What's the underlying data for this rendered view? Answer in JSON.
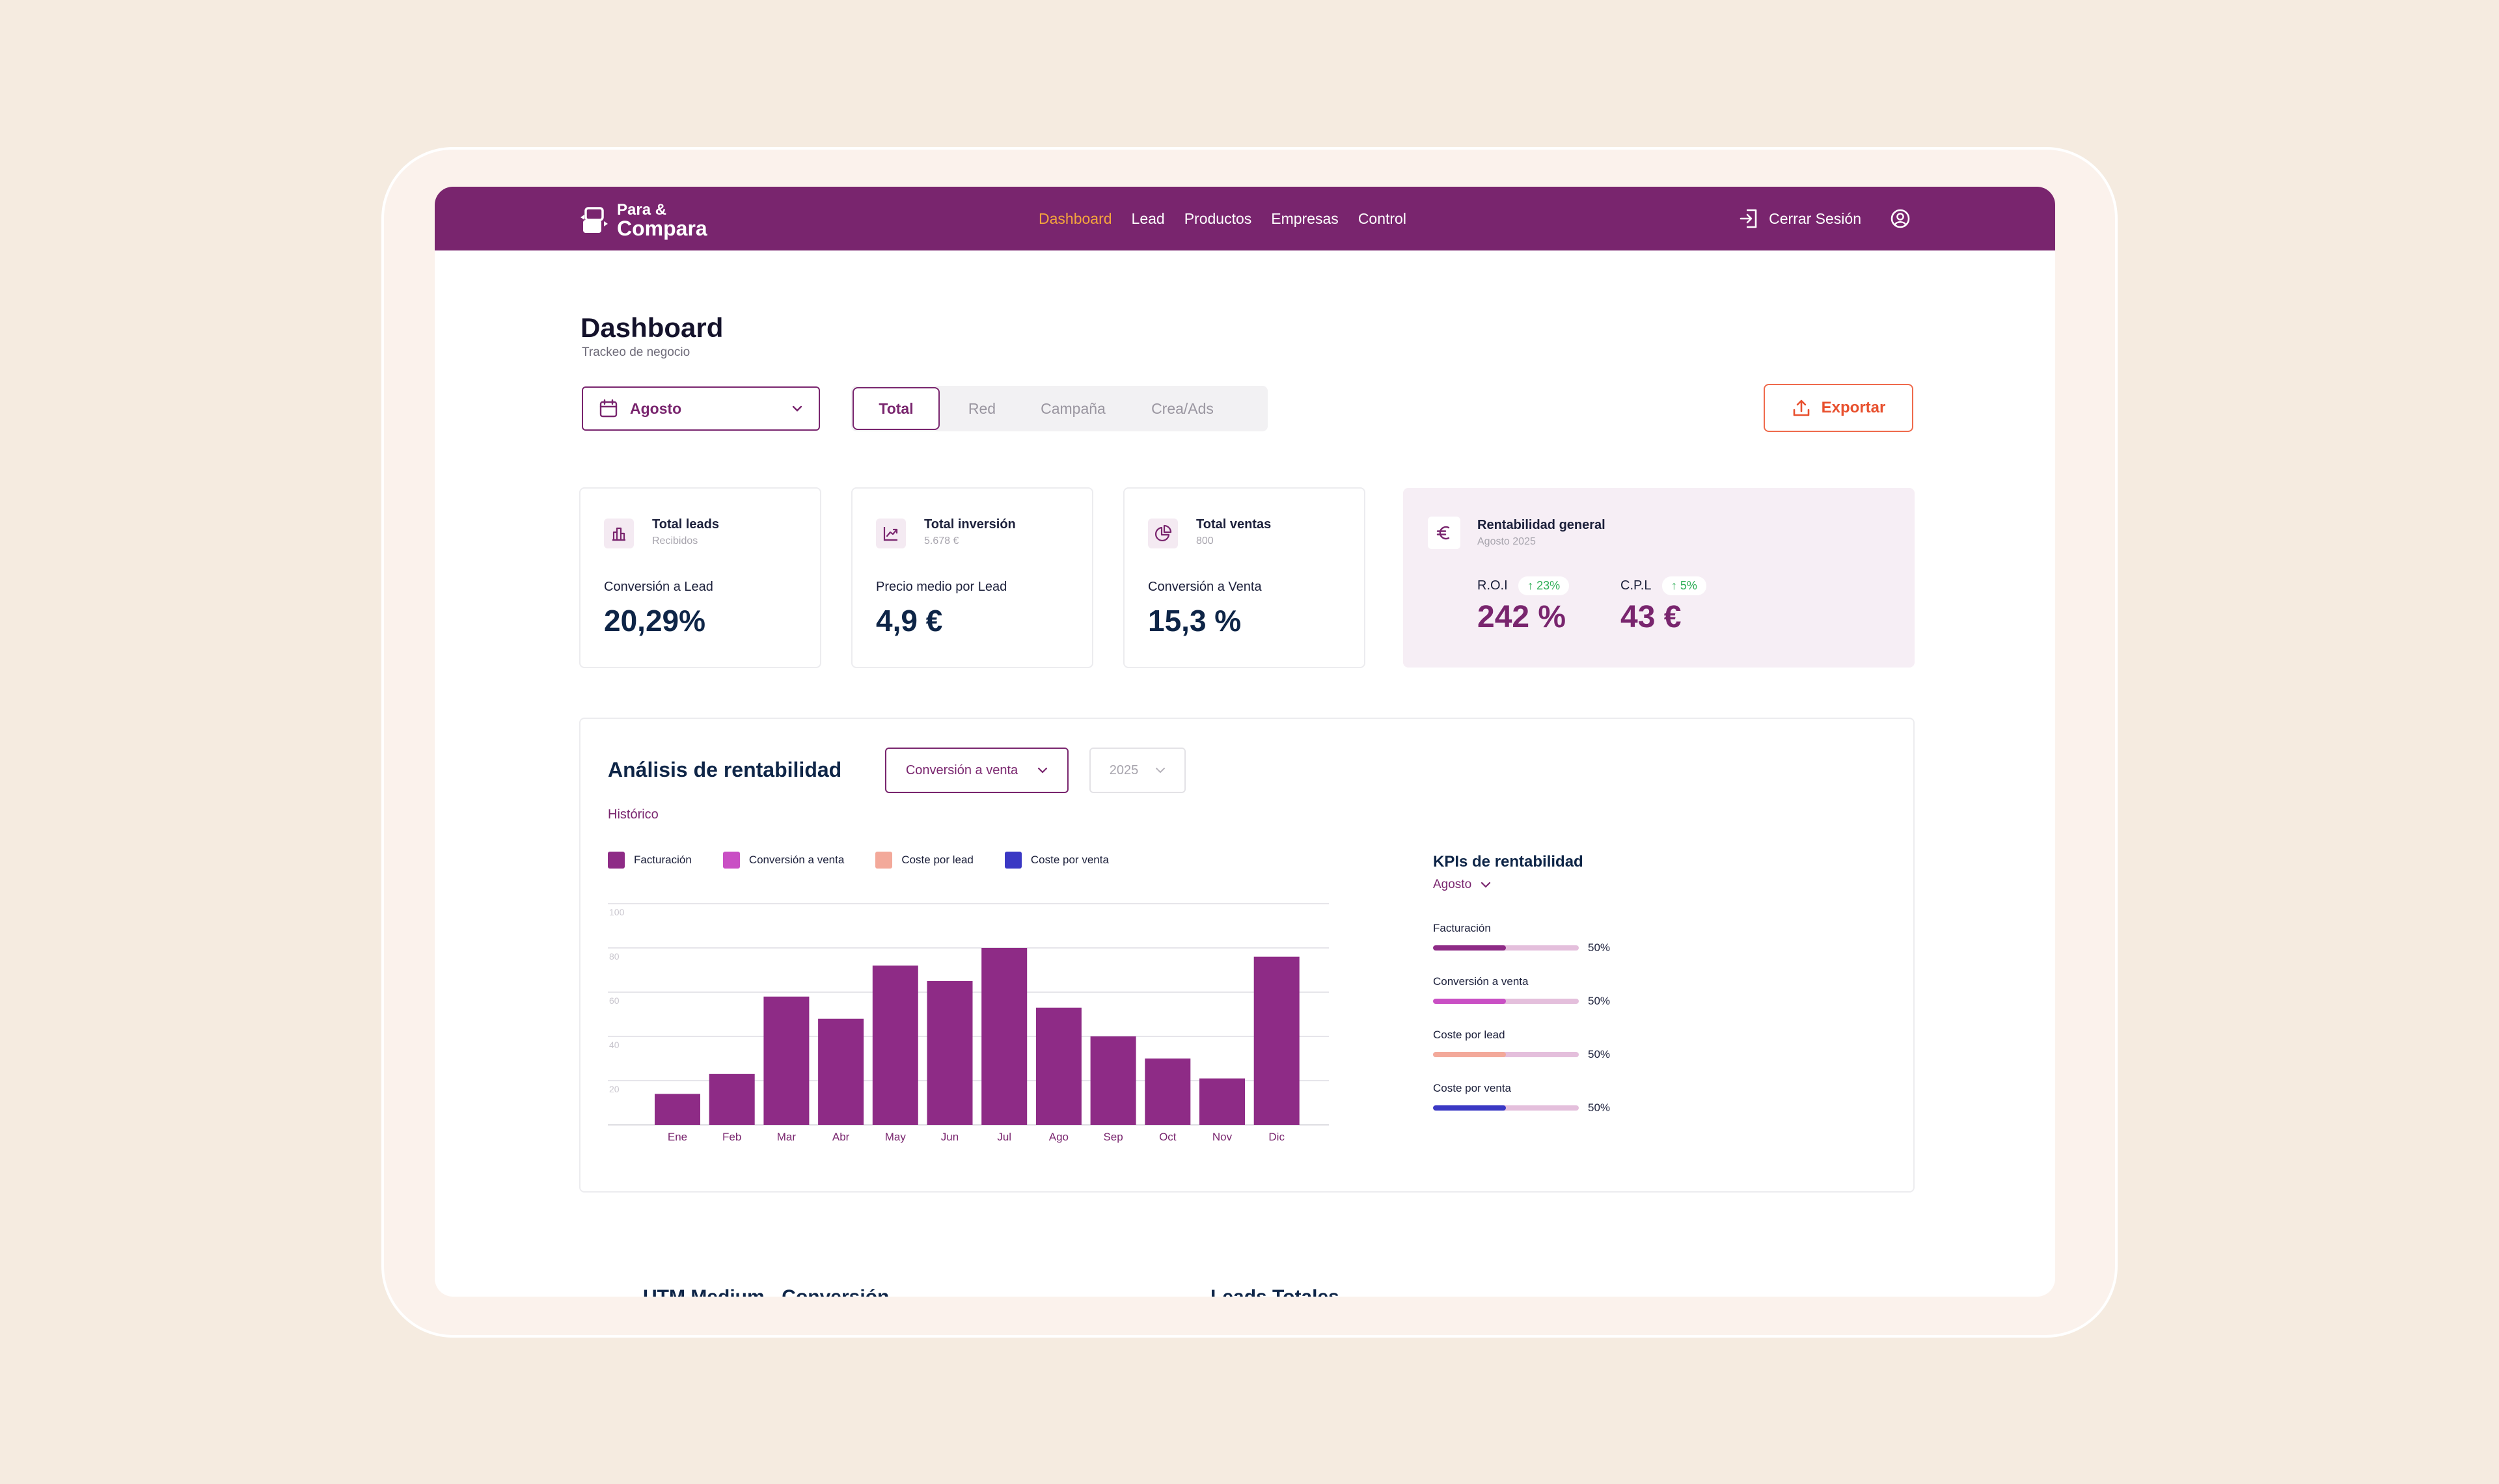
{
  "brand": {
    "line1": "Para &",
    "line2": "Compara"
  },
  "nav": {
    "items": [
      {
        "label": "Dashboard",
        "active": true
      },
      {
        "label": "Lead",
        "active": false
      },
      {
        "label": "Productos",
        "active": false
      },
      {
        "label": "Empresas",
        "active": false
      },
      {
        "label": "Control",
        "active": false
      }
    ],
    "logout_label": "Cerrar Sesión"
  },
  "header": {
    "title": "Dashboard",
    "subtitle": "Trackeo de negocio"
  },
  "filters": {
    "month": "Agosto",
    "segments": [
      "Total",
      "Red",
      "Campaña",
      "Crea/Ads"
    ],
    "active_segment": "Total",
    "export_label": "Exportar"
  },
  "cards": [
    {
      "title": "Total leads",
      "sub": "Recibidos",
      "metric_label": "Conversión a Lead",
      "metric_value": "20,29%",
      "icon": "bar-chart-icon"
    },
    {
      "title": "Total inversión",
      "sub": "5.678 €",
      "metric_label": "Precio medio por Lead",
      "metric_value": "4,9 €",
      "icon": "trend-up-icon"
    },
    {
      "title": "Total ventas",
      "sub": "800",
      "metric_label": "Conversión a Venta",
      "metric_value": "15,3 %",
      "icon": "pie-chart-icon"
    }
  ],
  "rentabilidad": {
    "title": "Rentabilidad general",
    "sub": "Agosto 2025",
    "icon": "euro-icon",
    "roi": {
      "label": "R.O.I",
      "change": "↑ 23%",
      "value": "242 %"
    },
    "cpl": {
      "label": "C.P.L",
      "change": "↑ 5%",
      "value": "43 €"
    }
  },
  "analysis": {
    "title": "Análisis de rentabilidad",
    "metric_select": "Conversión a venta",
    "year_select": "2025",
    "subtitle": "Histórico",
    "legend": [
      {
        "label": "Facturación",
        "color": "#8e2b86"
      },
      {
        "label": "Conversión a  venta",
        "color": "#c94fc4"
      },
      {
        "label": "Coste por lead",
        "color": "#f3a99a"
      },
      {
        "label": "Coste por venta",
        "color": "#3a38c4"
      }
    ]
  },
  "chart_data": {
    "type": "bar",
    "categories": [
      "Ene",
      "Feb",
      "Mar",
      "Abr",
      "May",
      "Jun",
      "Jul",
      "Ago",
      "Sep",
      "Oct",
      "Nov",
      "Dic"
    ],
    "series": [
      {
        "name": "Facturación",
        "values": [
          14,
          23,
          58,
          48,
          72,
          65,
          80,
          53,
          40,
          30,
          21,
          76
        ]
      }
    ],
    "yticks": [
      20,
      40,
      60,
      80,
      100
    ],
    "ylim": [
      0,
      100
    ],
    "bar_color": "#8e2b86",
    "grid": true
  },
  "kpis_side": {
    "title": "KPIs de rentabilidad",
    "month": "Agosto",
    "items": [
      {
        "label": "Facturación",
        "pct": "50%",
        "value": 0.5,
        "color": "#8e2b86"
      },
      {
        "label": "Conversión a  venta",
        "pct": "50%",
        "value": 0.5,
        "color": "#c94fc4"
      },
      {
        "label": "Coste por lead",
        "pct": "50%",
        "value": 0.5,
        "color": "#f3a99a"
      },
      {
        "label": "Coste por venta",
        "pct": "50%",
        "value": 0.5,
        "color": "#3a38c4"
      }
    ]
  },
  "bottom": {
    "left_title": "UTM Medium - Conversión",
    "right_title": "Leads Totales"
  }
}
